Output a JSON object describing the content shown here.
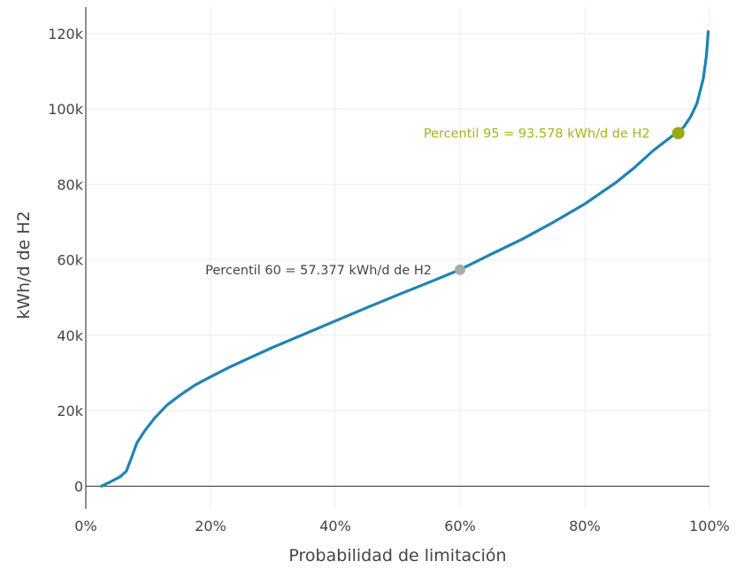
{
  "chart_data": {
    "type": "line",
    "xlabel": "Probabilidad de limitación",
    "ylabel": "kWh/d de H2",
    "xlim": [
      0,
      100
    ],
    "ylim": [
      -6000,
      127000
    ],
    "x_ticks": [
      {
        "value": 0,
        "label": "0%"
      },
      {
        "value": 20,
        "label": "20%"
      },
      {
        "value": 40,
        "label": "40%"
      },
      {
        "value": 60,
        "label": "60%"
      },
      {
        "value": 80,
        "label": "80%"
      },
      {
        "value": 100,
        "label": "100%"
      }
    ],
    "y_ticks": [
      {
        "value": 0,
        "label": "0"
      },
      {
        "value": 20000,
        "label": "20k"
      },
      {
        "value": 40000,
        "label": "40k"
      },
      {
        "value": 60000,
        "label": "60k"
      },
      {
        "value": 80000,
        "label": "80k"
      },
      {
        "value": 100000,
        "label": "100k"
      },
      {
        "value": 120000,
        "label": "120k"
      }
    ],
    "grid": true,
    "legend": "none",
    "line_color": "#1f83b4",
    "series": [
      {
        "x": [
          2.5,
          4,
          5.5,
          6.5,
          7.2,
          8.2,
          9.5,
          11,
          13,
          15,
          17.5,
          20,
          23,
          26,
          30,
          35,
          40,
          45,
          50,
          55,
          60,
          65,
          70,
          75,
          80,
          85,
          88,
          91,
          94,
          95,
          96,
          97,
          98,
          99,
          99.5,
          99.8
        ],
        "y": [
          0,
          1200,
          2500,
          4000,
          7000,
          11500,
          14800,
          18000,
          21500,
          24000,
          26800,
          29000,
          31500,
          33800,
          36800,
          40300,
          43800,
          47300,
          50700,
          54000,
          57400,
          61500,
          65500,
          70000,
          74800,
          80500,
          84500,
          89000,
          92800,
          93578,
          95500,
          98000,
          101500,
          108000,
          114000,
          120500
        ]
      }
    ],
    "annotations": [
      {
        "text": "Percentil 60 = 57.377 kWh/d de H2",
        "x": 60,
        "y": 57377,
        "color": "#444444",
        "marker_color": "#aaaaaa",
        "position": "left"
      },
      {
        "text": "Percentil 95 = 93.578 kWh/d de H2",
        "x": 95,
        "y": 93578,
        "color": "#a0b51e",
        "marker_color": "#93ab16",
        "position": "left"
      }
    ]
  }
}
